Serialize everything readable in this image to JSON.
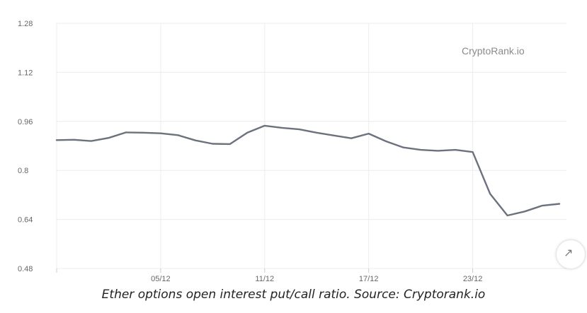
{
  "watermark": "CryptoRank.io",
  "caption": "Ether options open interest put/call ratio. Source: Cryptorank.io",
  "colors": {
    "line": "#6b717d",
    "grid": "#ececec",
    "axis": "#cccccc"
  },
  "scroll_icon": "arrow-icon",
  "chart_data": {
    "type": "line",
    "title": "",
    "xlabel": "",
    "ylabel": "",
    "y_ticks": [
      "0.48",
      "0.64",
      "0.8",
      "0.96",
      "1.12",
      "1.28"
    ],
    "ylim": [
      0.48,
      1.28
    ],
    "x_tick_labels": [
      {
        "label": "05/12",
        "index": 6
      },
      {
        "label": "11/12",
        "index": 12
      },
      {
        "label": "17/12",
        "index": 18
      },
      {
        "label": "23/12",
        "index": 24
      }
    ],
    "grid": true,
    "series": [
      {
        "values": [
          0.899,
          0.9,
          0.896,
          0.906,
          0.924,
          0.923,
          0.921,
          0.915,
          0.898,
          0.887,
          0.886,
          0.923,
          0.946,
          0.939,
          0.934,
          0.923,
          0.914,
          0.905,
          0.92,
          0.895,
          0.875,
          0.867,
          0.864,
          0.867,
          0.86,
          0.724,
          0.653,
          0.666,
          0.685,
          0.691
        ]
      }
    ]
  }
}
